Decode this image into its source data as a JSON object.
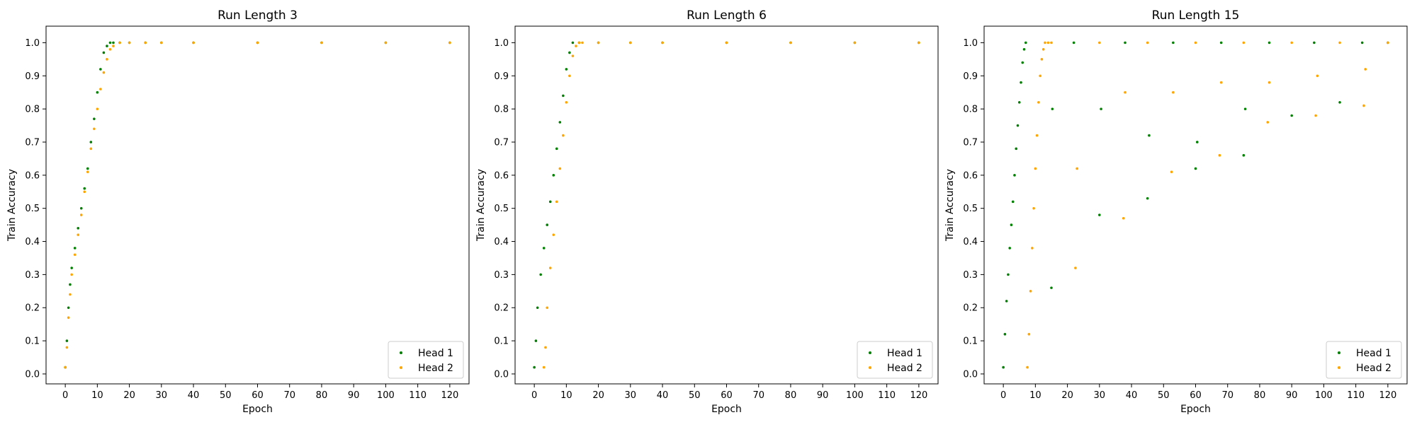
{
  "figure": {
    "colors": {
      "head1": "#008000",
      "head2": "#ffa500"
    }
  },
  "chart_data": [
    {
      "type": "scatter",
      "title": "Run Length 3",
      "xlabel": "Epoch",
      "ylabel": "Train Accuracy",
      "xlim": [
        -6,
        126
      ],
      "ylim": [
        -0.03,
        1.05
      ],
      "xticks": [
        "0",
        "10",
        "20",
        "30",
        "40",
        "50",
        "60",
        "70",
        "80",
        "90",
        "100",
        "110",
        "120"
      ],
      "yticks": [
        "0.0",
        "0.1",
        "0.2",
        "0.3",
        "0.4",
        "0.5",
        "0.6",
        "0.7",
        "0.8",
        "0.9",
        "1.0"
      ],
      "legend": {
        "position": "lower-right",
        "entries": [
          "Head 1",
          "Head 2"
        ]
      },
      "grid": false,
      "series": [
        {
          "name": "Head 1",
          "color": "#008000",
          "x": [
            0,
            0.5,
            1,
            1.5,
            2,
            3,
            4,
            5,
            6,
            7,
            8,
            9,
            10,
            11,
            12,
            13,
            14,
            15,
            17,
            20,
            25,
            30,
            40,
            60,
            80,
            100,
            120
          ],
          "y": [
            0.02,
            0.1,
            0.2,
            0.27,
            0.32,
            0.38,
            0.44,
            0.5,
            0.56,
            0.62,
            0.7,
            0.77,
            0.85,
            0.92,
            0.97,
            0.99,
            1.0,
            1.0,
            1.0,
            1.0,
            1.0,
            1.0,
            1.0,
            1.0,
            1.0,
            1.0,
            1.0
          ]
        },
        {
          "name": "Head 2",
          "color": "#ffa500",
          "x": [
            0,
            0.5,
            1,
            1.5,
            2,
            3,
            4,
            5,
            6,
            7,
            8,
            9,
            10,
            11,
            12,
            13,
            14,
            15,
            17,
            20,
            25,
            30,
            40,
            60,
            80,
            100,
            120
          ],
          "y": [
            0.02,
            0.08,
            0.17,
            0.24,
            0.3,
            0.36,
            0.42,
            0.48,
            0.55,
            0.61,
            0.68,
            0.74,
            0.8,
            0.86,
            0.91,
            0.95,
            0.98,
            0.99,
            1.0,
            1.0,
            1.0,
            1.0,
            1.0,
            1.0,
            1.0,
            1.0,
            1.0
          ]
        }
      ]
    },
    {
      "type": "scatter",
      "title": "Run Length 6",
      "xlabel": "Epoch",
      "ylabel": "Train Accuracy",
      "xlim": [
        -6,
        126
      ],
      "ylim": [
        -0.03,
        1.05
      ],
      "xticks": [
        "0",
        "10",
        "20",
        "30",
        "40",
        "50",
        "60",
        "70",
        "80",
        "90",
        "100",
        "110",
        "120"
      ],
      "yticks": [
        "0.0",
        "0.1",
        "0.2",
        "0.3",
        "0.4",
        "0.5",
        "0.6",
        "0.7",
        "0.8",
        "0.9",
        "1.0"
      ],
      "legend": {
        "position": "lower-right",
        "entries": [
          "Head 1",
          "Head 2"
        ]
      },
      "grid": false,
      "series": [
        {
          "name": "Head 1",
          "color": "#008000",
          "x": [
            0,
            0.5,
            1,
            2,
            3,
            4,
            5,
            6,
            7,
            8,
            9,
            10,
            11,
            12,
            14,
            20,
            30,
            40,
            60,
            80,
            100,
            120
          ],
          "y": [
            0.02,
            0.1,
            0.2,
            0.3,
            0.38,
            0.45,
            0.52,
            0.6,
            0.68,
            0.76,
            0.84,
            0.92,
            0.97,
            1.0,
            1.0,
            1.0,
            1.0,
            1.0,
            1.0,
            1.0,
            1.0,
            1.0
          ]
        },
        {
          "name": "Head 2",
          "color": "#ffa500",
          "x": [
            3,
            3.5,
            4,
            5,
            6,
            7,
            8,
            9,
            10,
            11,
            12,
            13,
            14,
            15,
            20,
            30,
            40,
            60,
            80,
            100,
            120
          ],
          "y": [
            0.02,
            0.08,
            0.2,
            0.32,
            0.42,
            0.52,
            0.62,
            0.72,
            0.82,
            0.9,
            0.96,
            0.99,
            1.0,
            1.0,
            1.0,
            1.0,
            1.0,
            1.0,
            1.0,
            1.0,
            1.0
          ]
        }
      ]
    },
    {
      "type": "scatter",
      "title": "Run Length 15",
      "xlabel": "Epoch",
      "ylabel": "Train Accuracy",
      "xlim": [
        -6,
        126
      ],
      "ylim": [
        -0.03,
        1.05
      ],
      "xticks": [
        "0",
        "10",
        "20",
        "30",
        "40",
        "50",
        "60",
        "70",
        "80",
        "90",
        "100",
        "110",
        "120"
      ],
      "yticks": [
        "0.0",
        "0.1",
        "0.2",
        "0.3",
        "0.4",
        "0.5",
        "0.6",
        "0.7",
        "0.8",
        "0.9",
        "1.0"
      ],
      "legend": {
        "position": "lower-right",
        "entries": [
          "Head 1",
          "Head 2"
        ]
      },
      "grid": false,
      "series": [
        {
          "name": "Head 1",
          "color": "#008000",
          "x": [
            0,
            0.5,
            1,
            1.5,
            2,
            2.5,
            3,
            3.5,
            4,
            4.5,
            5,
            5.5,
            6,
            6.5,
            7,
            15,
            15.3,
            22,
            30,
            30.5,
            38,
            45,
            45.5,
            53,
            60,
            60.5,
            68,
            75,
            75.5,
            83,
            90,
            97,
            105,
            112,
            120
          ],
          "y": [
            0.02,
            0.12,
            0.22,
            0.3,
            0.38,
            0.45,
            0.52,
            0.6,
            0.68,
            0.75,
            0.82,
            0.88,
            0.94,
            0.98,
            1.0,
            0.26,
            0.8,
            1.0,
            0.48,
            0.8,
            1.0,
            0.53,
            0.72,
            1.0,
            0.62,
            0.7,
            1.0,
            0.66,
            0.8,
            1.0,
            0.78,
            1.0,
            0.82,
            1.0,
            1.0
          ]
        },
        {
          "name": "Head 2",
          "color": "#ffa500",
          "x": [
            7.5,
            8,
            8.5,
            9,
            9.5,
            10,
            10.5,
            11,
            11.5,
            12,
            12.5,
            13,
            14,
            15,
            22.5,
            23,
            30,
            37.5,
            38,
            45,
            52.5,
            53,
            60,
            67.5,
            68,
            75,
            82.5,
            83,
            90,
            97.5,
            98,
            105,
            112.5,
            113,
            120
          ],
          "y": [
            0.02,
            0.12,
            0.25,
            0.38,
            0.5,
            0.62,
            0.72,
            0.82,
            0.9,
            0.95,
            0.98,
            1.0,
            1.0,
            1.0,
            0.32,
            0.62,
            1.0,
            0.47,
            0.85,
            1.0,
            0.61,
            0.85,
            1.0,
            0.66,
            0.88,
            1.0,
            0.76,
            0.88,
            1.0,
            0.78,
            0.9,
            1.0,
            0.81,
            0.92,
            1.0
          ]
        }
      ]
    }
  ]
}
